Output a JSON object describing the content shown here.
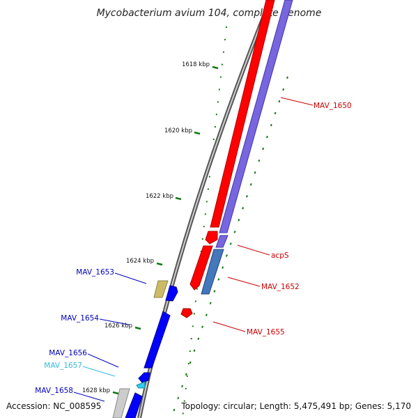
{
  "title": "Mycobacterium avium 104, complete genome",
  "footer": {
    "accession": "Accession: NC_008595",
    "topology": "Topology: circular; Length: 5,475,491 bp; Genes: 5,170"
  },
  "ticks": [
    "1618 kbp",
    "1620 kbp",
    "1622 kbp",
    "1624 kbp",
    "1626 kbp",
    "1628 kbp"
  ],
  "genes": [
    {
      "name": "MAV_1650",
      "color": "#cc0000"
    },
    {
      "name": "acpS",
      "color": "#cc0000"
    },
    {
      "name": "MAV_1652",
      "color": "#cc0000"
    },
    {
      "name": "MAV_1655",
      "color": "#cc0000"
    },
    {
      "name": "MAV_1653",
      "color": "#0000bb"
    },
    {
      "name": "MAV_1654",
      "color": "#0000bb"
    },
    {
      "name": "MAV_1656",
      "color": "#0000bb"
    },
    {
      "name": "MAV_1657",
      "color": "#33bbdd"
    },
    {
      "name": "MAV_1658",
      "color": "#0000bb"
    }
  ],
  "colors": {
    "backbone": "#777777",
    "forward_cds": "#ff0000",
    "reverse_cds": "#0000ff",
    "rna_track": "#7766dd",
    "tick_marks": "#117711"
  }
}
